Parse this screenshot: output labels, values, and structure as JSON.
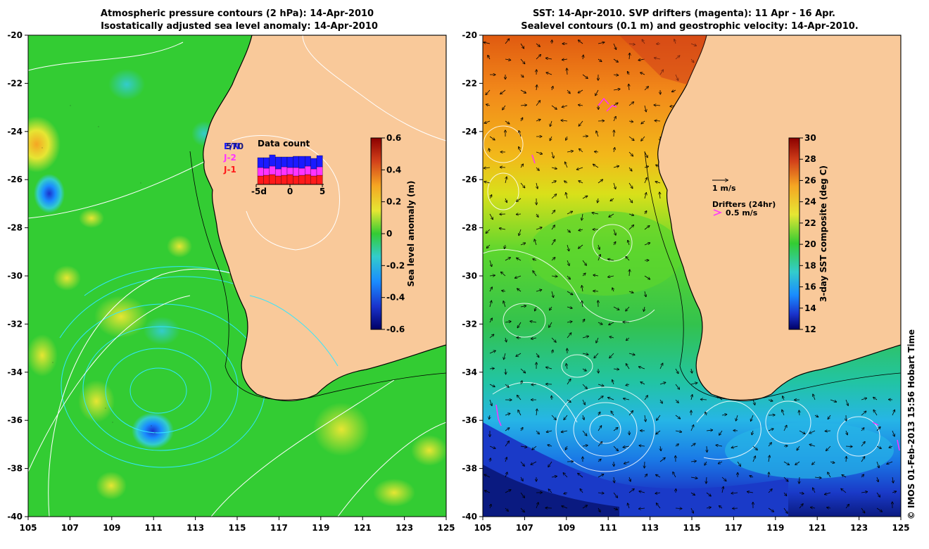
{
  "left_map": {
    "title_line1": "Atmospheric pressure contours (2 hPa): 14-Apr-2010",
    "title_line2": "Isostatically adjusted sea level anomaly: 14-Apr-2010",
    "lon_ticks": [
      "105",
      "107",
      "109",
      "111",
      "113",
      "115",
      "117",
      "119",
      "121",
      "123",
      "125"
    ],
    "lat_ticks": [
      "-20",
      "-22",
      "-24",
      "-26",
      "-28",
      "-30",
      "-32",
      "-34",
      "-36",
      "-38",
      "-40"
    ],
    "colorbar": {
      "label": "Sea level anomaly (m)",
      "ticks": [
        "0.6",
        "0.4",
        "0.2",
        "0",
        "-0.2",
        "-0.4",
        "-0.6"
      ],
      "min": -0.6,
      "max": 0.6
    },
    "data_count": {
      "title": "Data count",
      "legend": [
        {
          "label": "E/N",
          "color": "#1a1aff"
        },
        {
          "label": "J-2",
          "color": "#ff33ff"
        },
        {
          "label": "J-1",
          "color": "#ff1a1a"
        }
      ],
      "overlay_label": "570",
      "x_ticks": [
        "-5d",
        "0",
        "5"
      ]
    }
  },
  "right_map": {
    "title_line1": "SST: 14-Apr-2010. SVP drifters (magenta): 11 Apr - 16 Apr.",
    "title_line2": "Sealevel contours (0.1 m) and geostrophic velocity: 14-Apr-2010.",
    "lon_ticks": [
      "105",
      "107",
      "109",
      "111",
      "113",
      "115",
      "117",
      "119",
      "121",
      "123",
      "125"
    ],
    "lat_ticks": [
      "-20",
      "-22",
      "-24",
      "-26",
      "-28",
      "-30",
      "-32",
      "-34",
      "-36",
      "-38",
      "-40"
    ],
    "colorbar": {
      "label": "3-day SST composite (deg C)",
      "ticks": [
        "30",
        "28",
        "26",
        "24",
        "22",
        "20",
        "18",
        "16",
        "14",
        "12"
      ],
      "min": 12,
      "max": 30
    },
    "velocity_scale": "1 m/s",
    "drifters_title": "Drifters (24hr)",
    "drifters_scale": "0.5 m/s"
  },
  "credit": "© IMOS 01-Feb-2013 15:56 Hobart Time",
  "colors": {
    "land": "#f9c99a",
    "ocean_green": "#33cc33",
    "coastline": "#000000",
    "contour_white": "#ffffff",
    "contour_cyan": "#33e6ff"
  }
}
